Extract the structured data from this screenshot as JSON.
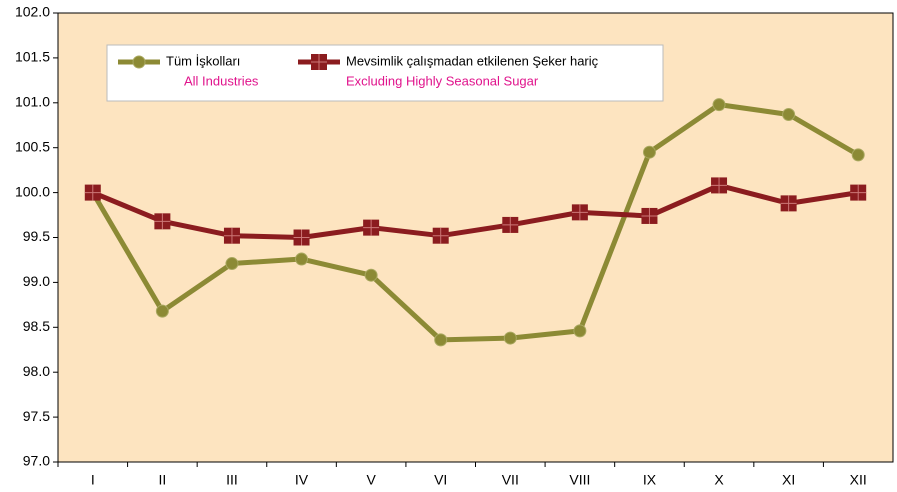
{
  "chart_data": {
    "type": "line",
    "categories": [
      "I",
      "II",
      "III",
      "IV",
      "V",
      "VI",
      "VII",
      "VIII",
      "IX",
      "X",
      "XI",
      "XII"
    ],
    "series": [
      {
        "name": "Tüm İşkolları",
        "subname": "All Industries",
        "color": "#8c8a35",
        "marker": "circle",
        "values": [
          100.0,
          98.68,
          99.21,
          99.26,
          99.08,
          98.36,
          98.38,
          98.46,
          100.45,
          100.98,
          100.87,
          100.42
        ]
      },
      {
        "name": "Mevsimlik çalışmadan etkilenen Şeker hariç",
        "subname": "Excluding Highly Seasonal Sugar",
        "color": "#8b1c1f",
        "marker": "square",
        "values": [
          100.0,
          99.68,
          99.52,
          99.5,
          99.61,
          99.52,
          99.64,
          99.78,
          99.74,
          100.08,
          99.88,
          100.0
        ]
      }
    ],
    "ylim": [
      97.0,
      102.0
    ],
    "yticks": [
      {
        "value": 97.0,
        "label": "97.0"
      },
      97.5,
      {
        "value": 98.0,
        "label": "98.0"
      },
      98.5,
      {
        "value": 99.0,
        "label": "99.0"
      },
      99.5,
      {
        "value": 100.0,
        "label": "100.0"
      },
      100.5,
      {
        "value": 101.0,
        "label": "101.0"
      },
      101.5,
      {
        "value": 102.0,
        "label": "102.0"
      }
    ],
    "subname_color": "#e0138c",
    "background": "#fde4c0",
    "grid": false
  }
}
